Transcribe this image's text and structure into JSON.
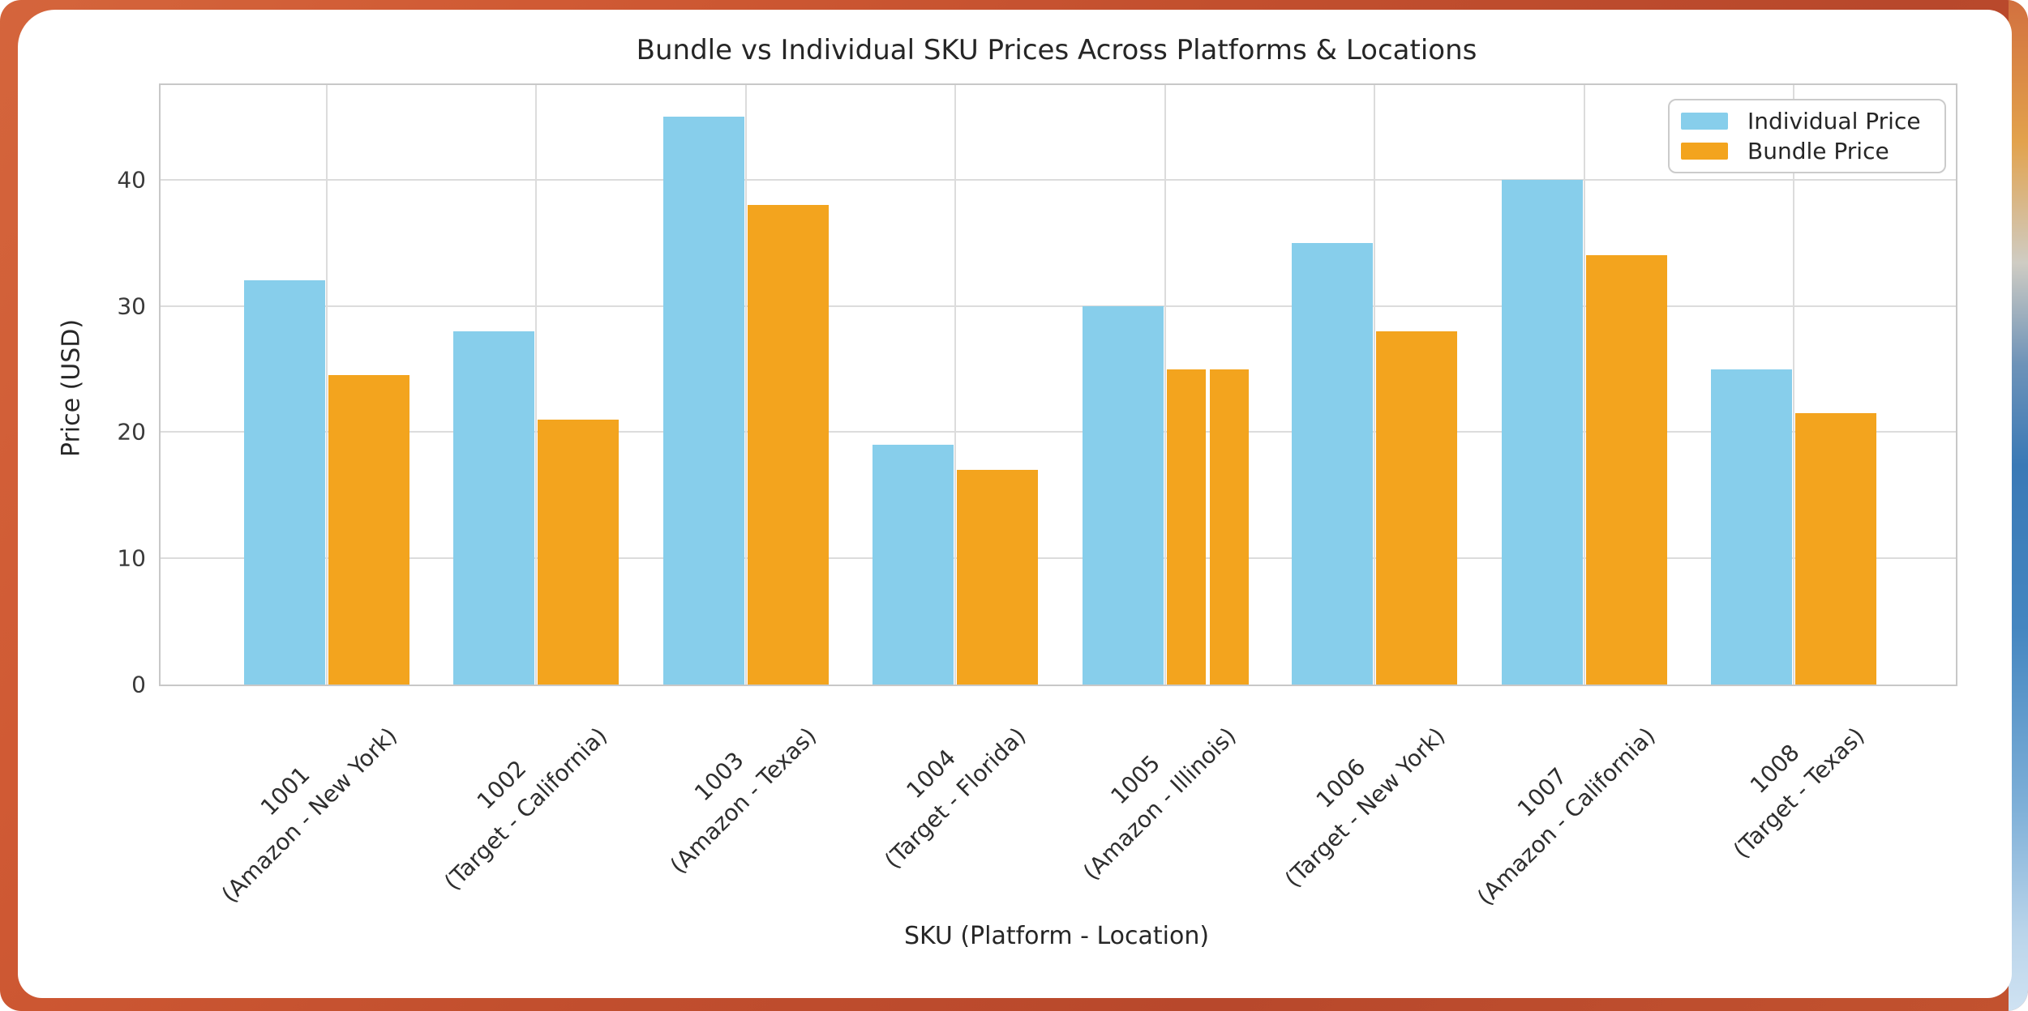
{
  "chart_data": {
    "type": "bar",
    "title": "Bundle vs Individual SKU Prices Across Platforms & Locations",
    "xlabel": "SKU (Platform - Location)",
    "ylabel": "Price (USD)",
    "ylim": [
      0,
      47.5
    ],
    "yticks": [
      0,
      10,
      20,
      30,
      40
    ],
    "grid": true,
    "legend_position": "upper right",
    "categories": [
      {
        "sku": "1001",
        "detail": "(Amazon - New York)"
      },
      {
        "sku": "1002",
        "detail": "(Target - California)"
      },
      {
        "sku": "1003",
        "detail": "(Amazon - Texas)"
      },
      {
        "sku": "1004",
        "detail": "(Target - Florida)"
      },
      {
        "sku": "1005",
        "detail": "(Amazon - Illinois)"
      },
      {
        "sku": "1006",
        "detail": "(Target - New York)"
      },
      {
        "sku": "1007",
        "detail": "(Amazon - California)"
      },
      {
        "sku": "1008",
        "detail": "(Target - Texas)"
      }
    ],
    "series": [
      {
        "name": "Individual Price",
        "color": "#87CEEB",
        "values": [
          32,
          28,
          45,
          19,
          30,
          35,
          40,
          25
        ]
      },
      {
        "name": "Bundle Price",
        "color": "#F3A41E",
        "values": [
          24.5,
          21,
          38,
          17,
          25,
          28,
          34,
          21.5
        ]
      }
    ],
    "bundle_split": {
      "sku": "1005",
      "values": [
        25,
        25
      ]
    }
  },
  "colors": {
    "grid_line": "#dcdcdc",
    "plot_spine": "#c8c8c8",
    "text": "#262626",
    "frame_orange": "#c9532f",
    "frame_mustard": "#e2a24c",
    "frame_blue": "#3a79b6",
    "frame_pale_blue": "#cfe2f2"
  }
}
